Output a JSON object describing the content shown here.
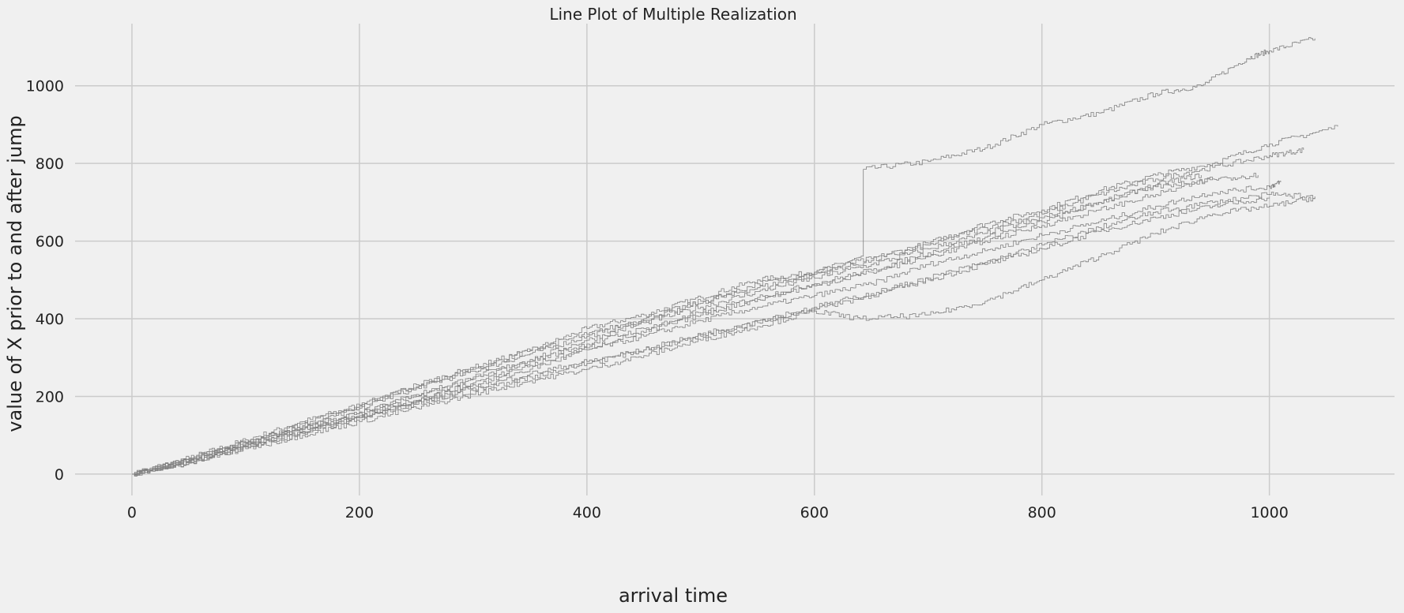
{
  "chart_data": {
    "type": "line",
    "title": "Line Plot of Multiple Realization",
    "xlabel": "arrival time",
    "ylabel": "value of X prior to and after jump",
    "xlim": [
      -50,
      1110
    ],
    "ylim": [
      -55,
      1160
    ],
    "xticks": [
      0,
      200,
      400,
      600,
      800,
      1000
    ],
    "yticks": [
      0,
      200,
      400,
      600,
      800,
      1000
    ],
    "grid": true,
    "color": "#808080",
    "series": [
      {
        "values": [
          [
            0,
            0
          ],
          [
            50,
            42
          ],
          [
            100,
            88
          ],
          [
            150,
            135
          ],
          [
            200,
            178
          ],
          [
            250,
            225
          ],
          [
            300,
            270
          ],
          [
            350,
            318
          ],
          [
            400,
            375
          ],
          [
            450,
            410
          ],
          [
            500,
            455
          ],
          [
            550,
            500
          ],
          [
            600,
            520
          ],
          [
            643,
            560
          ],
          [
            643,
            785
          ],
          [
            700,
            805
          ],
          [
            750,
            840
          ],
          [
            800,
            900
          ],
          [
            850,
            930
          ],
          [
            900,
            980
          ],
          [
            940,
            1000
          ],
          [
            980,
            1070
          ],
          [
            1000,
            1090
          ],
          [
            1040,
            1122
          ]
        ]
      },
      {
        "values": [
          [
            0,
            0
          ],
          [
            50,
            35
          ],
          [
            100,
            80
          ],
          [
            150,
            125
          ],
          [
            200,
            170
          ],
          [
            250,
            222
          ],
          [
            300,
            265
          ],
          [
            350,
            310
          ],
          [
            400,
            355
          ],
          [
            450,
            395
          ],
          [
            500,
            440
          ],
          [
            550,
            490
          ],
          [
            600,
            520
          ],
          [
            650,
            555
          ],
          [
            700,
            595
          ],
          [
            750,
            645
          ],
          [
            800,
            680
          ],
          [
            850,
            730
          ],
          [
            900,
            770
          ],
          [
            950,
            800
          ],
          [
            1000,
            850
          ],
          [
            1060,
            895
          ]
        ]
      },
      {
        "values": [
          [
            0,
            0
          ],
          [
            50,
            38
          ],
          [
            100,
            82
          ],
          [
            150,
            130
          ],
          [
            200,
            175
          ],
          [
            250,
            230
          ],
          [
            300,
            275
          ],
          [
            350,
            320
          ],
          [
            400,
            360
          ],
          [
            450,
            400
          ],
          [
            500,
            445
          ],
          [
            550,
            480
          ],
          [
            600,
            515
          ],
          [
            650,
            550
          ],
          [
            700,
            590
          ],
          [
            750,
            635
          ],
          [
            800,
            670
          ],
          [
            850,
            720
          ],
          [
            900,
            760
          ],
          [
            950,
            790
          ],
          [
            1000,
            820
          ],
          [
            1030,
            835
          ]
        ]
      },
      {
        "values": [
          [
            0,
            0
          ],
          [
            50,
            36
          ],
          [
            100,
            80
          ],
          [
            150,
            122
          ],
          [
            200,
            160
          ],
          [
            250,
            205
          ],
          [
            300,
            250
          ],
          [
            350,
            295
          ],
          [
            400,
            345
          ],
          [
            450,
            390
          ],
          [
            500,
            430
          ],
          [
            550,
            470
          ],
          [
            600,
            505
          ],
          [
            650,
            540
          ],
          [
            700,
            580
          ],
          [
            750,
            620
          ],
          [
            800,
            660
          ],
          [
            850,
            700
          ],
          [
            900,
            745
          ],
          [
            940,
            770
          ]
        ]
      },
      {
        "values": [
          [
            0,
            0
          ],
          [
            50,
            40
          ],
          [
            100,
            78
          ],
          [
            150,
            118
          ],
          [
            200,
            158
          ],
          [
            250,
            200
          ],
          [
            300,
            245
          ],
          [
            350,
            290
          ],
          [
            400,
            335
          ],
          [
            450,
            375
          ],
          [
            500,
            415
          ],
          [
            550,
            455
          ],
          [
            600,
            490
          ],
          [
            650,
            525
          ],
          [
            700,
            570
          ],
          [
            750,
            610
          ],
          [
            800,
            650
          ],
          [
            850,
            700
          ],
          [
            900,
            740
          ],
          [
            950,
            760
          ]
        ]
      },
      {
        "values": [
          [
            0,
            0
          ],
          [
            50,
            30
          ],
          [
            100,
            72
          ],
          [
            150,
            110
          ],
          [
            200,
            150
          ],
          [
            250,
            188
          ],
          [
            300,
            230
          ],
          [
            350,
            270
          ],
          [
            400,
            320
          ],
          [
            450,
            355
          ],
          [
            500,
            395
          ],
          [
            550,
            430
          ],
          [
            600,
            460
          ],
          [
            650,
            490
          ],
          [
            700,
            540
          ],
          [
            750,
            575
          ],
          [
            800,
            615
          ],
          [
            850,
            650
          ],
          [
            900,
            690
          ],
          [
            950,
            725
          ],
          [
            1000,
            740
          ],
          [
            1010,
            752
          ]
        ]
      },
      {
        "values": [
          [
            0,
            0
          ],
          [
            50,
            32
          ],
          [
            100,
            70
          ],
          [
            150,
            105
          ],
          [
            200,
            145
          ],
          [
            250,
            185
          ],
          [
            300,
            222
          ],
          [
            350,
            258
          ],
          [
            400,
            290
          ],
          [
            450,
            320
          ],
          [
            500,
            355
          ],
          [
            550,
            390
          ],
          [
            600,
            425
          ],
          [
            650,
            460
          ],
          [
            700,
            500
          ],
          [
            750,
            540
          ],
          [
            800,
            580
          ],
          [
            850,
            625
          ],
          [
            900,
            660
          ],
          [
            950,
            690
          ],
          [
            1000,
            712
          ]
        ]
      },
      {
        "values": [
          [
            0,
            0
          ],
          [
            50,
            28
          ],
          [
            100,
            65
          ],
          [
            150,
            100
          ],
          [
            200,
            135
          ],
          [
            250,
            170
          ],
          [
            300,
            205
          ],
          [
            350,
            240
          ],
          [
            400,
            270
          ],
          [
            450,
            305
          ],
          [
            500,
            345
          ],
          [
            550,
            380
          ],
          [
            600,
            420
          ],
          [
            640,
            400
          ],
          [
            700,
            410
          ],
          [
            750,
            445
          ],
          [
            800,
            500
          ],
          [
            850,
            560
          ],
          [
            900,
            620
          ],
          [
            950,
            670
          ],
          [
            1000,
            690
          ],
          [
            1040,
            712
          ]
        ]
      },
      {
        "values": [
          [
            0,
            0
          ],
          [
            50,
            33
          ],
          [
            100,
            75
          ],
          [
            150,
            115
          ],
          [
            200,
            150
          ],
          [
            250,
            190
          ],
          [
            300,
            235
          ],
          [
            350,
            280
          ],
          [
            400,
            325
          ],
          [
            450,
            365
          ],
          [
            500,
            410
          ],
          [
            550,
            450
          ],
          [
            600,
            485
          ],
          [
            650,
            520
          ],
          [
            700,
            560
          ],
          [
            750,
            600
          ],
          [
            800,
            640
          ],
          [
            850,
            680
          ],
          [
            900,
            720
          ],
          [
            950,
            760
          ],
          [
            990,
            770
          ]
        ]
      },
      {
        "values": [
          [
            0,
            0
          ],
          [
            50,
            30
          ],
          [
            100,
            70
          ],
          [
            150,
            108
          ],
          [
            200,
            145
          ],
          [
            250,
            180
          ],
          [
            300,
            215
          ],
          [
            350,
            250
          ],
          [
            400,
            285
          ],
          [
            450,
            320
          ],
          [
            500,
            360
          ],
          [
            550,
            395
          ],
          [
            600,
            430
          ],
          [
            650,
            465
          ],
          [
            700,
            505
          ],
          [
            750,
            545
          ],
          [
            800,
            590
          ],
          [
            850,
            635
          ],
          [
            900,
            675
          ],
          [
            950,
            700
          ],
          [
            1000,
            720
          ],
          [
            1040,
            715
          ]
        ]
      }
    ]
  }
}
